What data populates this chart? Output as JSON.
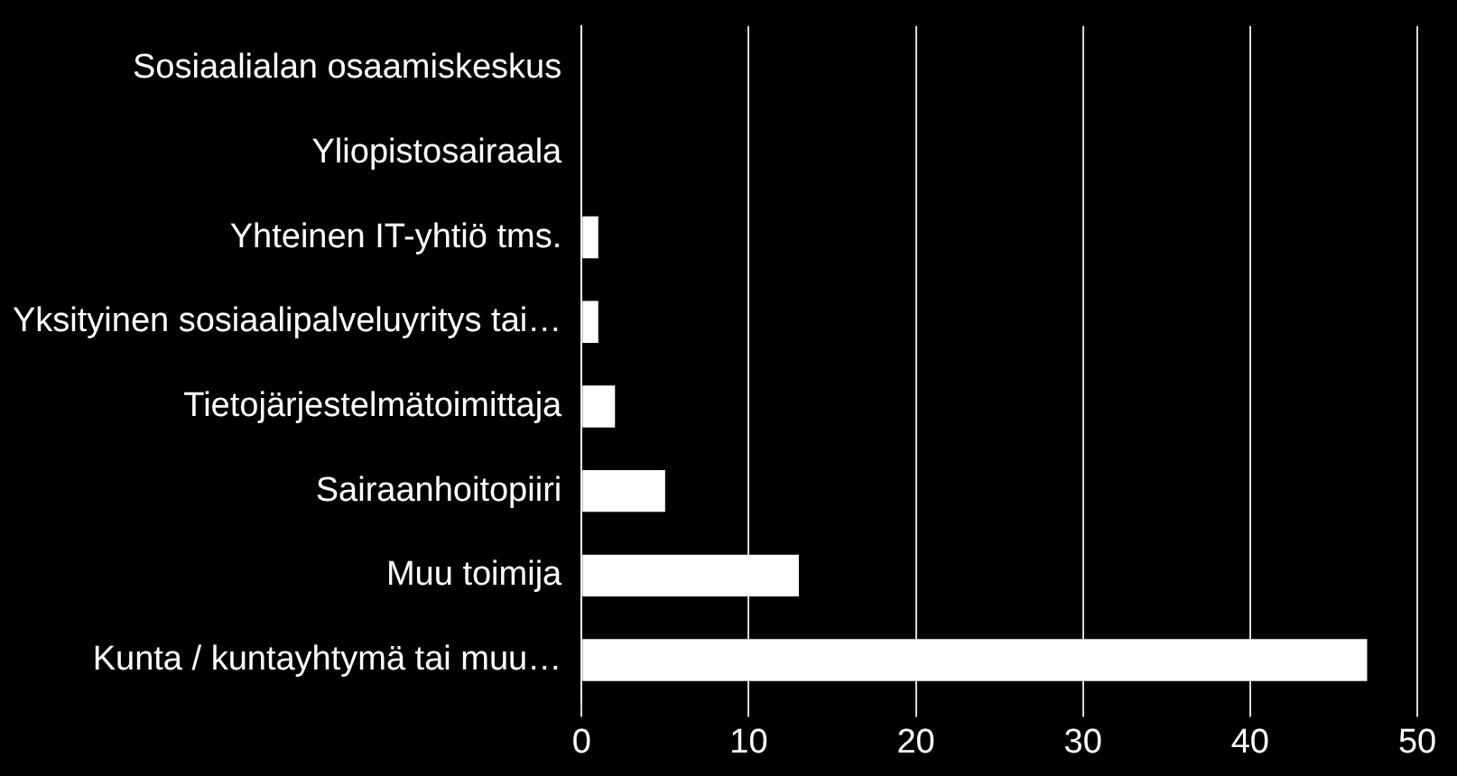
{
  "chart_data": {
    "type": "bar",
    "orientation": "horizontal",
    "categories": [
      "Sosiaalialan osaamiskeskus",
      "Yliopistosairaala",
      "Yhteinen IT-yhtiö tms.",
      "Yksityinen sosiaalipalveluyritys tai…",
      "Tietojärjestelmätoimittaja",
      "Sairaanhoitopiiri",
      "Muu toimija",
      "Kunta / kuntayhtymä tai muu…"
    ],
    "values": [
      0,
      0,
      1,
      1,
      2,
      5,
      13,
      47
    ],
    "color": "#ffffff",
    "xlim": [
      0,
      50
    ],
    "xticks": [
      0,
      10,
      20,
      30,
      40,
      50
    ],
    "grid": "x",
    "legend": false
  }
}
